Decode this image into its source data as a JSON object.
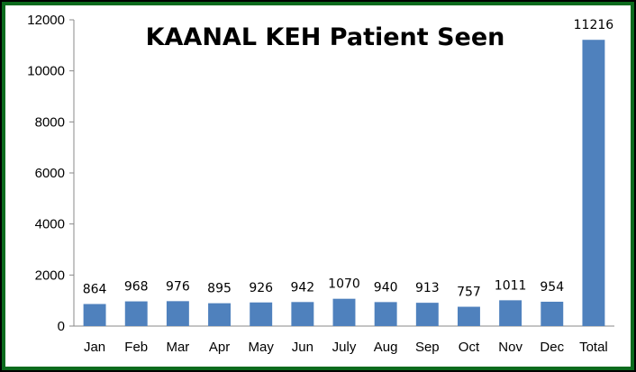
{
  "chart_data": {
    "type": "bar",
    "title": "KAANAL KEH Patient Seen",
    "xlabel": "",
    "ylabel": "",
    "categories": [
      "Jan",
      "Feb",
      "Mar",
      "Apr",
      "May",
      "Jun",
      "July",
      "Aug",
      "Sep",
      "Oct",
      "Nov",
      "Dec",
      "Total"
    ],
    "values": [
      864,
      968,
      976,
      895,
      926,
      942,
      1070,
      940,
      913,
      757,
      1011,
      954,
      11216
    ],
    "ylim": [
      0,
      12000
    ],
    "yticks": [
      0,
      2000,
      4000,
      6000,
      8000,
      10000,
      12000
    ],
    "grid": false,
    "legend": "none",
    "bar_color": "#4f81bd",
    "frame_color": "#0b6b1d"
  }
}
